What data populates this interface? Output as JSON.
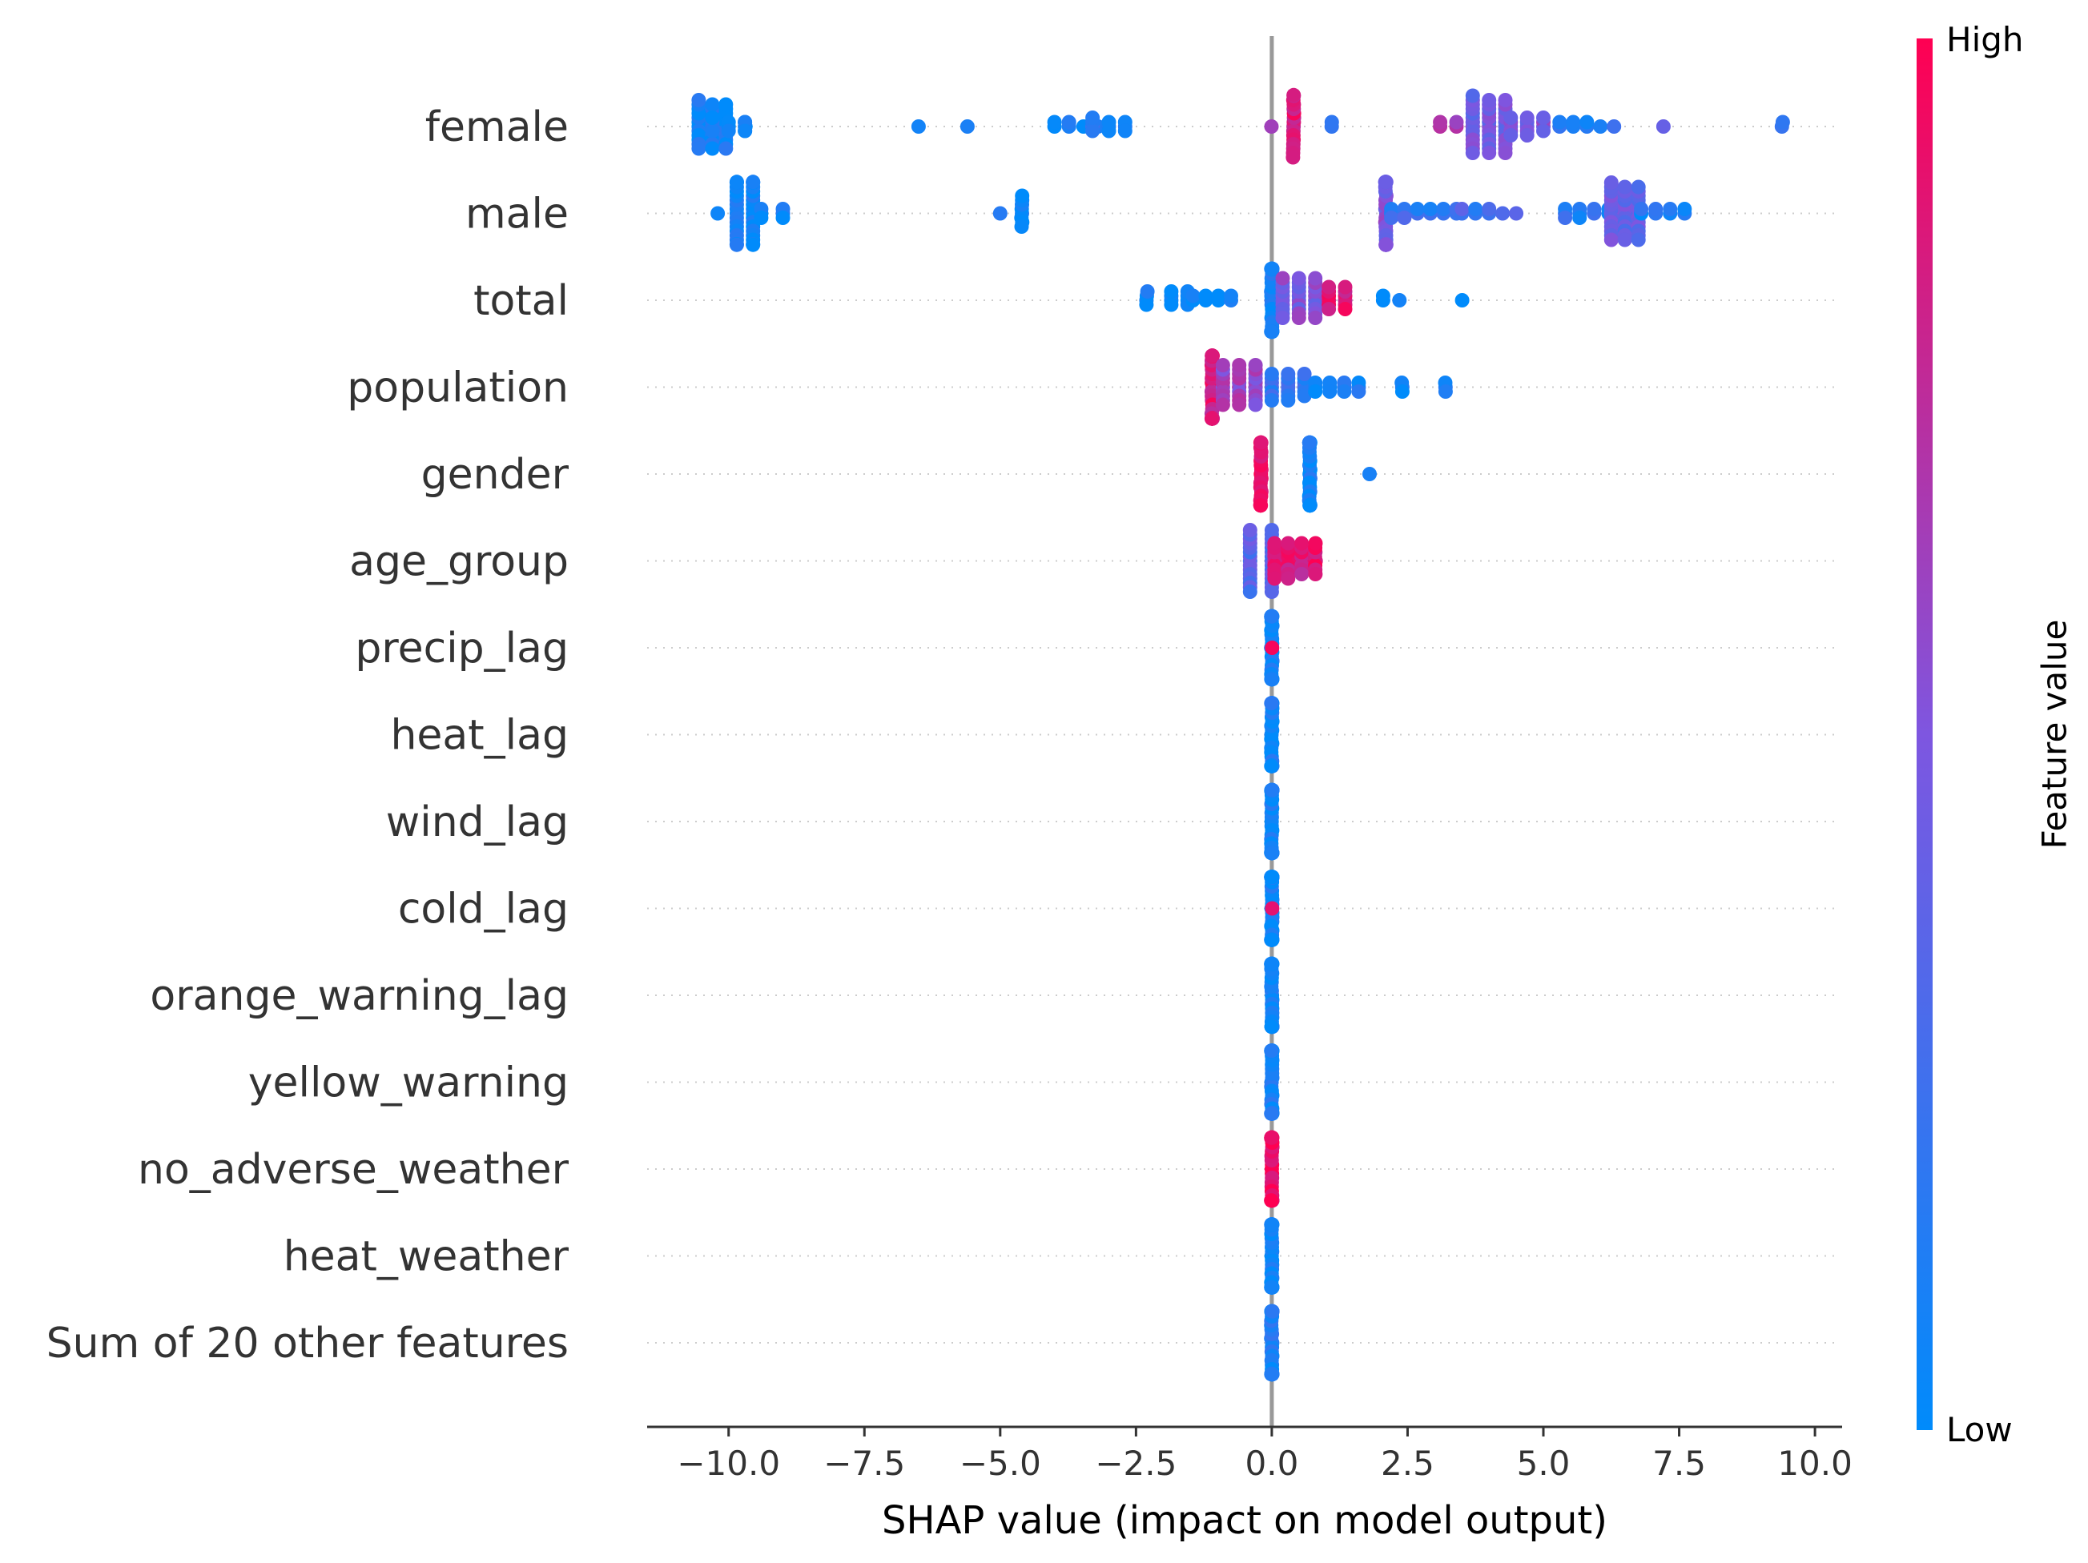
{
  "chart_data": {
    "type": "scatter",
    "subtype": "shap-beeswarm",
    "xlabel": "SHAP value (impact on model output)",
    "xlim": [
      -11.5,
      10.5
    ],
    "xticks": [
      -10.0,
      -7.5,
      -5.0,
      -2.5,
      0.0,
      2.5,
      5.0,
      7.5,
      10.0
    ],
    "xtick_labels": [
      "−10.0",
      "−7.5",
      "−5.0",
      "−2.5",
      "0.0",
      "2.5",
      "5.0",
      "7.5",
      "10.0"
    ],
    "zero_line": true,
    "colorbar": {
      "title": "Feature value",
      "high_label": "High",
      "low_label": "Low",
      "low_color": "#008bfb",
      "high_color": "#ff0052"
    },
    "features": [
      {
        "name": "female",
        "clusters": [
          {
            "x": -10.3,
            "w": 0.25,
            "n": 34,
            "v": 0.05
          },
          {
            "x": -10.0,
            "w": 0.3,
            "n": 10,
            "v": 0.05
          },
          {
            "x": -9.7,
            "w": 0.1,
            "n": 3,
            "v": 0.05
          },
          {
            "x": -6.5,
            "w": 0,
            "n": 1,
            "v": 0.05
          },
          {
            "x": -5.6,
            "w": 0,
            "n": 1,
            "v": 0.05
          },
          {
            "x": -3.6,
            "w": 0.4,
            "n": 6,
            "v": 0.1
          },
          {
            "x": -3.0,
            "w": 0.3,
            "n": 10,
            "v": 0.15
          },
          {
            "x": 0.0,
            "w": 0,
            "n": 1,
            "v": 0.7
          },
          {
            "x": 0.4,
            "w": 0.05,
            "n": 16,
            "v": 0.85
          },
          {
            "x": 1.1,
            "w": 0,
            "n": 2,
            "v": 0.3
          },
          {
            "x": 3.4,
            "w": 0.3,
            "n": 6,
            "v": 0.65
          },
          {
            "x": 4.0,
            "w": 0.3,
            "n": 40,
            "v": 0.45
          },
          {
            "x": 4.7,
            "w": 0.3,
            "n": 14,
            "v": 0.5
          },
          {
            "x": 5.8,
            "w": 0.5,
            "n": 8,
            "v": 0.15
          },
          {
            "x": 7.2,
            "w": 0,
            "n": 1,
            "v": 0.3
          },
          {
            "x": 9.4,
            "w": 0.1,
            "n": 2,
            "v": 0.15
          }
        ]
      },
      {
        "name": "male",
        "clusters": [
          {
            "x": -10.2,
            "w": 0,
            "n": 1,
            "v": 0.05
          },
          {
            "x": -9.7,
            "w": 0.15,
            "n": 36,
            "v": 0.05
          },
          {
            "x": -9.2,
            "w": 0.2,
            "n": 6,
            "v": 0.05
          },
          {
            "x": -5.0,
            "w": 0,
            "n": 1,
            "v": 0.05
          },
          {
            "x": -4.6,
            "w": 0.1,
            "n": 8,
            "v": 0.05
          },
          {
            "x": 2.1,
            "w": 0.05,
            "n": 24,
            "v": 0.5
          },
          {
            "x": 2.8,
            "w": 0.6,
            "n": 14,
            "v": 0.2
          },
          {
            "x": 4.0,
            "w": 0.5,
            "n": 8,
            "v": 0.25
          },
          {
            "x": 5.8,
            "w": 0.4,
            "n": 10,
            "v": 0.15
          },
          {
            "x": 6.5,
            "w": 0.25,
            "n": 40,
            "v": 0.4
          },
          {
            "x": 7.2,
            "w": 0.4,
            "n": 8,
            "v": 0.1
          }
        ]
      },
      {
        "name": "total",
        "clusters": [
          {
            "x": -2.3,
            "w": 0.05,
            "n": 4,
            "v": 0.05
          },
          {
            "x": -1.7,
            "w": 0.15,
            "n": 8,
            "v": 0.05
          },
          {
            "x": -1.1,
            "w": 0.35,
            "n": 8,
            "v": 0.05
          },
          {
            "x": 0.0,
            "w": 0.05,
            "n": 30,
            "v": 0.1
          },
          {
            "x": 0.5,
            "w": 0.3,
            "n": 30,
            "v": 0.5
          },
          {
            "x": 1.2,
            "w": 0.15,
            "n": 12,
            "v": 0.85
          },
          {
            "x": 2.2,
            "w": 0.15,
            "n": 3,
            "v": 0.05
          },
          {
            "x": 3.5,
            "w": 0,
            "n": 1,
            "v": 0.05
          }
        ]
      },
      {
        "name": "population",
        "clusters": [
          {
            "x": -1.1,
            "w": 0.08,
            "n": 30,
            "v": 0.85
          },
          {
            "x": -0.6,
            "w": 0.3,
            "n": 30,
            "v": 0.6
          },
          {
            "x": 0.3,
            "w": 0.3,
            "n": 20,
            "v": 0.2
          },
          {
            "x": 1.2,
            "w": 0.4,
            "n": 12,
            "v": 0.05
          },
          {
            "x": 2.4,
            "w": 0.1,
            "n": 3,
            "v": 0.05
          },
          {
            "x": 3.2,
            "w": 0.1,
            "n": 3,
            "v": 0.05
          }
        ]
      },
      {
        "name": "gender",
        "clusters": [
          {
            "x": -0.2,
            "w": 0.08,
            "n": 22,
            "v": 0.95
          },
          {
            "x": 0.7,
            "w": 0.12,
            "n": 24,
            "v": 0.05
          },
          {
            "x": 1.8,
            "w": 0,
            "n": 1,
            "v": 0.05
          }
        ]
      },
      {
        "name": "age_group",
        "clusters": [
          {
            "x": -0.2,
            "w": 0.2,
            "n": 30,
            "v": 0.35
          },
          {
            "x": 0.3,
            "w": 0.25,
            "n": 26,
            "v": 0.85
          },
          {
            "x": 0.8,
            "w": 0.12,
            "n": 8,
            "v": 0.9
          }
        ]
      },
      {
        "name": "precip_lag",
        "clusters": [
          {
            "x": 0.0,
            "w": 0.01,
            "n": 40,
            "v": 0.05
          },
          {
            "x": 0.0,
            "w": 0.01,
            "n": 1,
            "v": 0.95
          }
        ]
      },
      {
        "name": "heat_lag",
        "clusters": [
          {
            "x": 0.0,
            "w": 0.01,
            "n": 40,
            "v": 0.05
          }
        ]
      },
      {
        "name": "wind_lag",
        "clusters": [
          {
            "x": 0.0,
            "w": 0.01,
            "n": 40,
            "v": 0.05
          }
        ]
      },
      {
        "name": "cold_lag",
        "clusters": [
          {
            "x": 0.0,
            "w": 0.01,
            "n": 40,
            "v": 0.05
          },
          {
            "x": 0.0,
            "w": 0.01,
            "n": 1,
            "v": 0.95
          }
        ]
      },
      {
        "name": "orange_warning_lag",
        "clusters": [
          {
            "x": 0.0,
            "w": 0.01,
            "n": 40,
            "v": 0.05
          }
        ]
      },
      {
        "name": "yellow_warning",
        "clusters": [
          {
            "x": 0.0,
            "w": 0.01,
            "n": 40,
            "v": 0.08
          }
        ]
      },
      {
        "name": "no_adverse_weather",
        "clusters": [
          {
            "x": 0.0,
            "w": 0.01,
            "n": 40,
            "v": 0.95
          }
        ]
      },
      {
        "name": "heat_weather",
        "clusters": [
          {
            "x": 0.0,
            "w": 0.01,
            "n": 40,
            "v": 0.05
          }
        ]
      },
      {
        "name": "Sum of 20 other features",
        "clusters": [
          {
            "x": 0.0,
            "w": 0.01,
            "n": 40,
            "v": 0.08
          }
        ]
      }
    ]
  }
}
